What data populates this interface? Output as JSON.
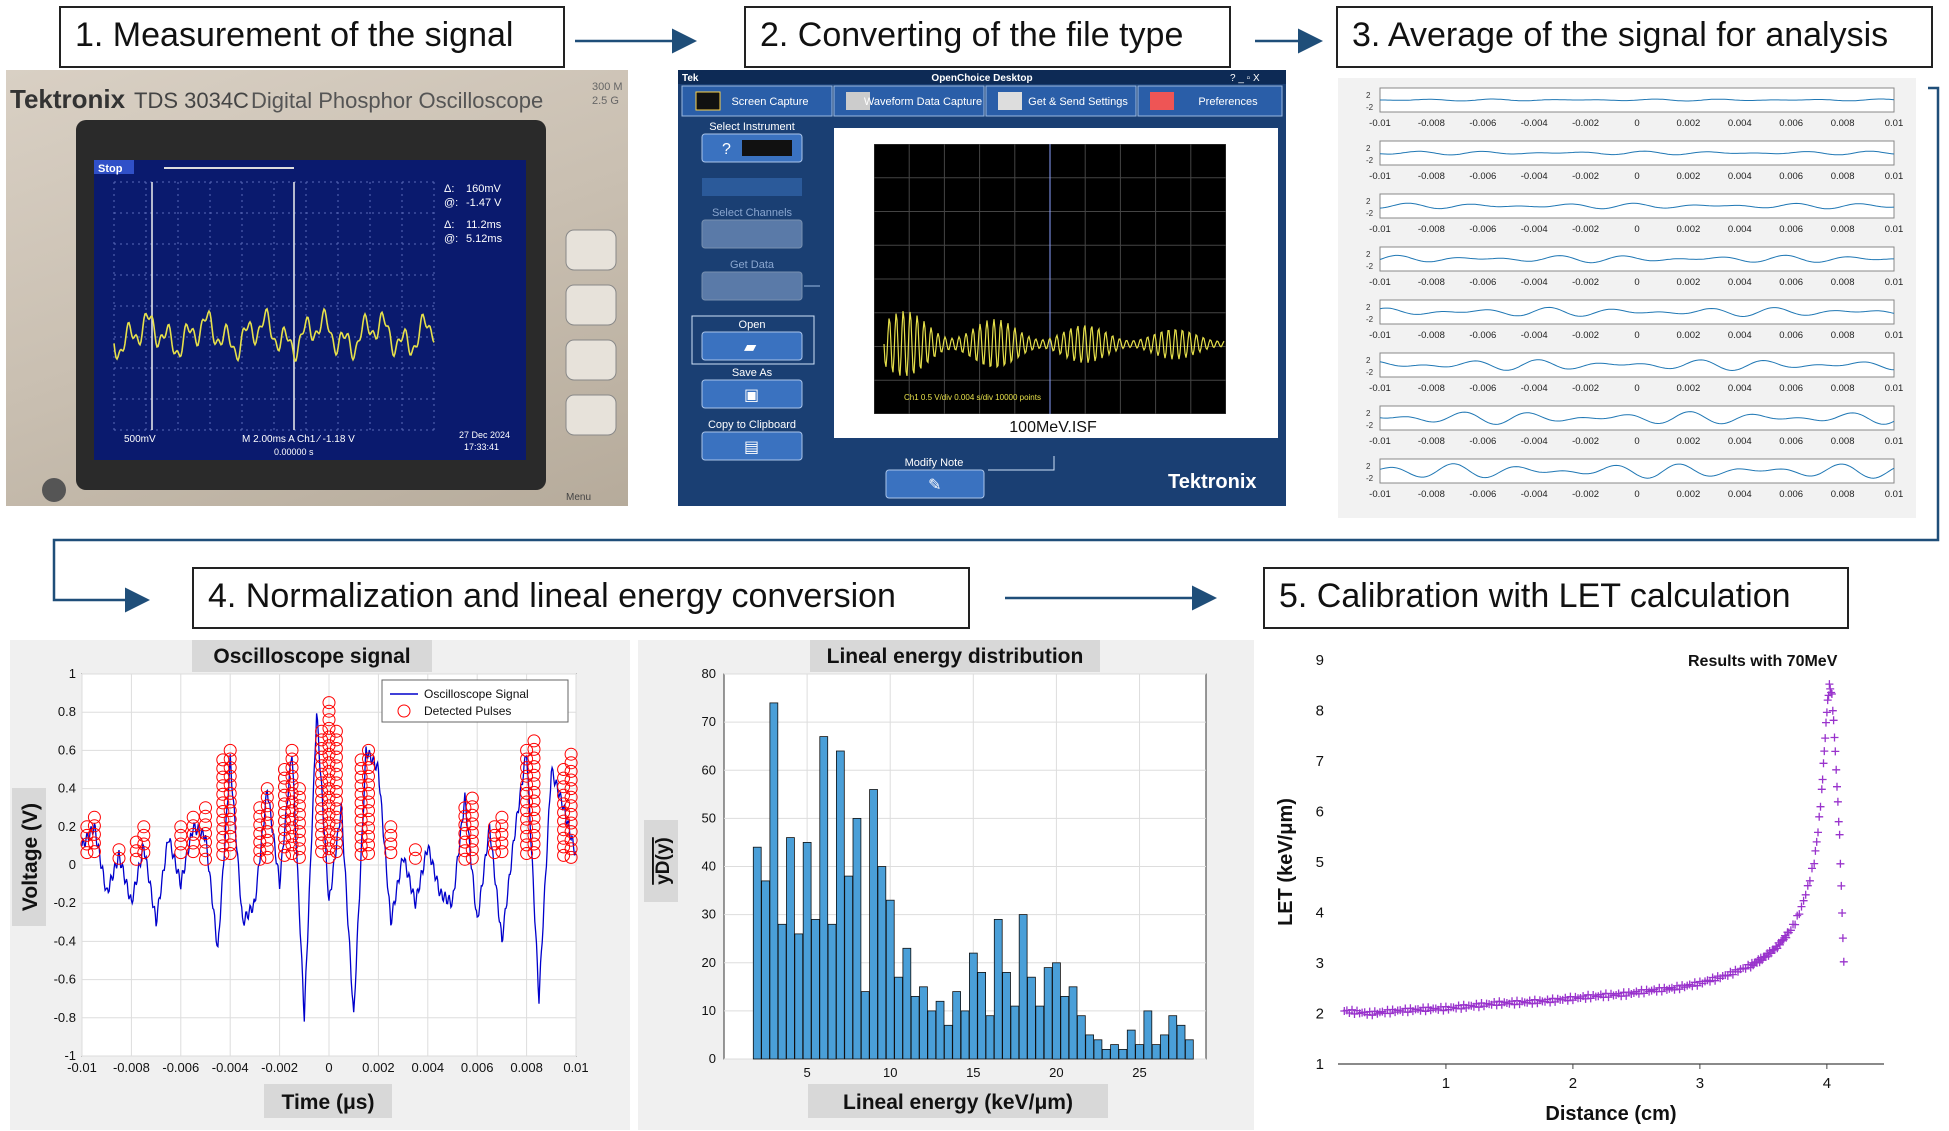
{
  "steps": {
    "s1": "1. Measurement of the signal",
    "s2": "2. Converting of the file type",
    "s3": "3. Average of the signal for analysis",
    "s4": "4. Normalization and lineal energy conversion",
    "s5": "5. Calibration with LET calculation"
  },
  "oscilloscope_photo": {
    "brand": "Tektronix",
    "model": "TDS 3034C",
    "model_desc": "Digital Phosphor Oscilloscope",
    "corner_top": "300 M",
    "corner_bottom": "2.5 G",
    "status": "Stop",
    "readout_1_label": "Δ:",
    "readout_1_value": "160mV",
    "readout_2_label": "@:",
    "readout_2_value": "-1.47 V",
    "readout_3_label": "Δ:",
    "readout_3_value": "11.2ms",
    "readout_4_label": "@:",
    "readout_4_value": "5.12ms",
    "channel_scale": "500mV",
    "timebase": "M 2.00ms  A  Ch1  ∕  -1.18 V",
    "date": "27 Dec 2024",
    "time": "17:33:41",
    "trigger_pos": "0.00000 s",
    "knob_label": "Menu"
  },
  "openchoice": {
    "title_left": "Tek",
    "title_center": "OpenChoice Desktop",
    "window_controls": "? _ ▫ X",
    "tabs": [
      "Screen Capture",
      "Waveform Data Capture",
      "Get & Send Settings",
      "Preferences"
    ],
    "select_instrument": "Select Instrument",
    "select_channels": "Select Channels",
    "get_data": "Get Data",
    "open": "Open",
    "save_as": "Save As",
    "copy_clipboard": "Copy to Clipboard",
    "scope_footer": "Ch1 0.5 V/div 0.004 s/div 10000 points",
    "filename": "100MeV.ISF",
    "modify_note": "Modify Note",
    "brand": "Tektronix"
  },
  "average_panel": {
    "x_ticks": [
      "-0.01",
      "-0.008",
      "-0.006",
      "-0.004",
      "-0.002",
      "0",
      "0.002",
      "0.004",
      "0.006",
      "0.008",
      "0.01"
    ],
    "rows": 8
  },
  "colors": {
    "arrow": "#1f4e79",
    "signal_blue": "#0000cc",
    "pulse_red": "#ff0000",
    "bar_blue": "#4a9fd8",
    "let_purple": "#9933cc",
    "tek_blue": "#1a3f73",
    "scope_trace": "#e6e04a"
  },
  "chart_data": [
    {
      "type": "line",
      "title": "Oscilloscope signal",
      "xlabel": "Time (μs)",
      "ylabel": "Voltage (V)",
      "xlim": [
        -0.01,
        0.01
      ],
      "ylim": [
        -1,
        1
      ],
      "x_ticks": [
        "-0.01",
        "-0.008",
        "-0.006",
        "-0.004",
        "-0.002",
        "0",
        "0.002",
        "0.004",
        "0.006",
        "0.008",
        "0.01"
      ],
      "y_ticks": [
        "1",
        "0.8",
        "0.6",
        "0.4",
        "0.2",
        "0",
        "-0.2",
        "-0.4",
        "-0.6",
        "-0.8",
        "-1"
      ],
      "legend": [
        "Oscilloscope Signal",
        "Detected Pulses"
      ],
      "legend_position": "top-right",
      "grid": true,
      "series": [
        {
          "name": "Oscilloscope Signal",
          "x": [
            -0.01,
            -0.0095,
            -0.009,
            -0.0085,
            -0.008,
            -0.0075,
            -0.007,
            -0.0065,
            -0.006,
            -0.0055,
            -0.005,
            -0.0045,
            -0.004,
            -0.0035,
            -0.003,
            -0.0025,
            -0.002,
            -0.0015,
            -0.001,
            -0.0005,
            0,
            0.0005,
            0.001,
            0.0015,
            0.002,
            0.0025,
            0.003,
            0.0035,
            0.004,
            0.0045,
            0.005,
            0.0055,
            0.006,
            0.0065,
            0.007,
            0.0075,
            0.008,
            0.0085,
            0.009,
            0.0095,
            0.01
          ],
          "values": [
            0.1,
            0.2,
            -0.15,
            0.05,
            -0.2,
            0.1,
            -0.3,
            0.15,
            -0.1,
            0.2,
            0.15,
            -0.45,
            0.55,
            -0.3,
            -0.2,
            0.4,
            -0.1,
            0.6,
            -0.8,
            0.8,
            -0.2,
            0.3,
            -0.8,
            0.6,
            0.5,
            -0.3,
            0.05,
            -0.2,
            0.1,
            -0.15,
            -0.2,
            0.35,
            -0.3,
            0.2,
            -0.4,
            0.15,
            0.6,
            -0.7,
            0.5,
            0.3,
            0.05
          ]
        },
        {
          "name": "Detected Pulses",
          "x": [
            -0.0098,
            -0.0095,
            -0.0085,
            -0.0078,
            -0.0075,
            -0.006,
            -0.0055,
            -0.005,
            -0.0043,
            -0.004,
            -0.0028,
            -0.0025,
            -0.0018,
            -0.0015,
            -0.0012,
            -0.0003,
            0,
            0.0003,
            0.0013,
            0.0016,
            0.0025,
            0.0035,
            0.0055,
            0.0058,
            0.0067,
            0.007,
            0.008,
            0.0083,
            0.0095,
            0.0098
          ],
          "values": [
            0.2,
            0.25,
            0.08,
            0.12,
            0.2,
            0.2,
            0.25,
            0.3,
            0.55,
            0.6,
            0.3,
            0.4,
            0.5,
            0.6,
            0.4,
            0.7,
            0.85,
            0.7,
            0.55,
            0.6,
            0.2,
            0.08,
            0.3,
            0.35,
            0.2,
            0.25,
            0.6,
            0.65,
            0.5,
            0.58
          ]
        }
      ]
    },
    {
      "type": "bar",
      "title": "Lineal energy distribution",
      "xlabel": "Lineal energy (keV/μm)",
      "ylabel": "yD(y)",
      "xlim": [
        0,
        29
      ],
      "ylim": [
        0,
        80
      ],
      "x_ticks": [
        "5",
        "10",
        "15",
        "20",
        "25"
      ],
      "y_ticks": [
        "0",
        "10",
        "20",
        "30",
        "40",
        "50",
        "60",
        "70",
        "80"
      ],
      "grid": true,
      "x": [
        2,
        2.5,
        3,
        3.5,
        4,
        4.5,
        5,
        5.5,
        6,
        6.5,
        7,
        7.5,
        8,
        8.5,
        9,
        9.5,
        10,
        10.5,
        11,
        11.5,
        12,
        12.5,
        13,
        13.5,
        14,
        14.5,
        15,
        15.5,
        16,
        16.5,
        17,
        17.5,
        18,
        18.5,
        19,
        19.5,
        20,
        20.5,
        21,
        21.5,
        22,
        22.5,
        23,
        23.5,
        24,
        24.5,
        25,
        25.5,
        26,
        26.5,
        27,
        27.5,
        28
      ],
      "values": [
        44,
        37,
        74,
        28,
        46,
        26,
        45,
        29,
        67,
        28,
        64,
        38,
        50,
        14,
        56,
        40,
        33,
        17,
        23,
        13,
        15,
        10,
        12,
        7,
        14,
        10,
        22,
        18,
        9,
        29,
        18,
        11,
        30,
        17,
        11,
        19,
        20,
        13,
        15,
        9,
        5,
        4,
        2,
        3,
        2,
        6,
        3,
        10,
        3,
        5,
        9,
        7,
        4
      ]
    },
    {
      "type": "scatter",
      "title": "Results with 70MeV",
      "xlabel": "Distance (cm)",
      "ylabel": "LET (keV/μm)",
      "xlim": [
        0.15,
        4.45
      ],
      "ylim": [
        1,
        9
      ],
      "x_ticks": [
        "1",
        "2",
        "3",
        "4"
      ],
      "y_ticks": [
        "1",
        "2",
        "3",
        "4",
        "5",
        "6",
        "7",
        "8",
        "9"
      ],
      "grid": false,
      "x": [
        0.2,
        0.4,
        0.6,
        0.8,
        1.0,
        1.2,
        1.4,
        1.6,
        1.8,
        2.0,
        2.2,
        2.4,
        2.6,
        2.8,
        3.0,
        3.2,
        3.4,
        3.5,
        3.6,
        3.7,
        3.75,
        3.8,
        3.85,
        3.9,
        3.93,
        3.96,
        3.98,
        4.0,
        4.02,
        4.04,
        4.06,
        4.08,
        4.1,
        4.12,
        4.14
      ],
      "values": [
        2.05,
        2.0,
        2.05,
        2.08,
        2.1,
        2.15,
        2.2,
        2.22,
        2.25,
        2.3,
        2.35,
        2.38,
        2.45,
        2.5,
        2.6,
        2.75,
        2.95,
        3.1,
        3.3,
        3.6,
        3.8,
        4.1,
        4.5,
        5.0,
        5.6,
        6.4,
        7.2,
        8.0,
        8.5,
        8.3,
        7.5,
        6.5,
        5.5,
        4.0,
        2.5
      ]
    }
  ]
}
